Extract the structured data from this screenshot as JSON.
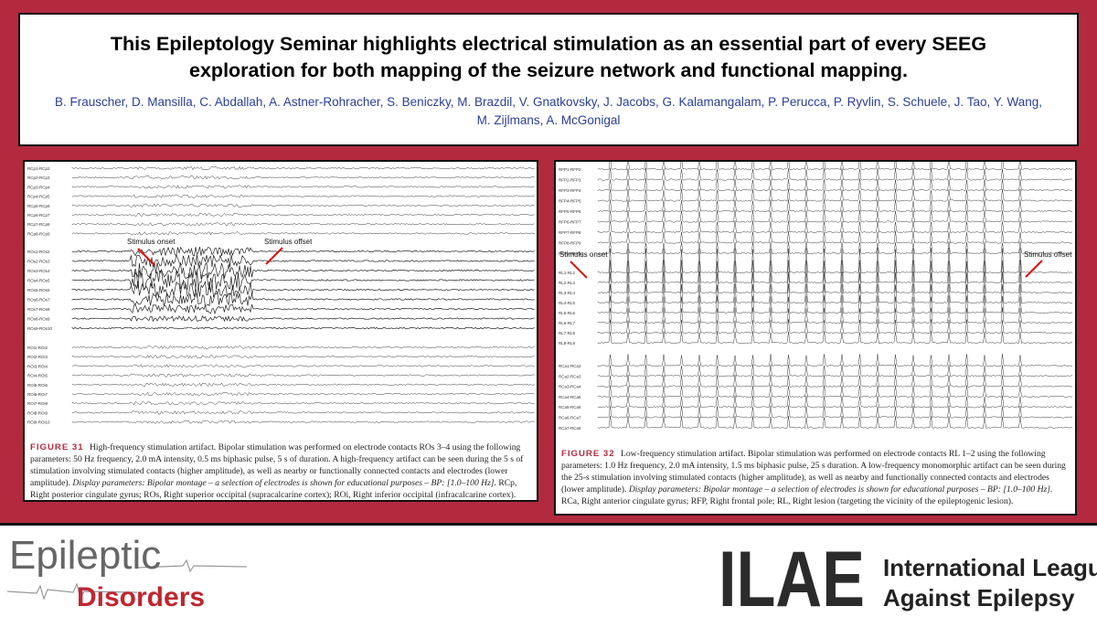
{
  "header": {
    "title": "This Epileptology Seminar highlights electrical stimulation as an essential part of every SEEG exploration for both mapping of the seizure network and functional mapping.",
    "authors": "B. Frauscher, D. Mansilla, C. Abdallah, A. Astner-Rohracher, S. Beniczky, M. Brazdil, V. Gnatkovsky, J. Jacobs, G. Kalamangalam, P. Perucca, P. Ryvlin, S. Schuele, J. Tao, Y. Wang, M. Zijlmans, A. McGonigal"
  },
  "figures": [
    {
      "channel_groups": [
        [
          "RCp1-RCp2",
          "RCp2-RCp3",
          "RCp3-RCp4",
          "RCp4-RCp5",
          "RCp5-RCp6",
          "RCp6-RCp7",
          "RCp7-RCp8",
          "RCp8-RCp9"
        ],
        [
          "ROs1-ROs2",
          "ROs2-ROs3",
          "ROs3-ROs4",
          "ROs4-ROs5",
          "ROs5-ROs6",
          "ROs6-ROs7",
          "ROs7-ROs8",
          "ROs8-ROs9",
          "ROs9-ROs10"
        ],
        [
          "ROi1-ROi2",
          "ROi2-ROi3",
          "ROi3-ROi4",
          "ROi4-ROi5",
          "ROi5-ROi6",
          "ROi6-ROi7",
          "ROi7-ROi8",
          "ROi8-ROi9",
          "ROi9-ROi10"
        ]
      ],
      "annotations": [
        "Stimulus onset",
        "Stimulus offset"
      ],
      "caption": {
        "label": "FIGURE 31",
        "text": "High-frequency stimulation artifact. Bipolar stimulation was performed on electrode contacts ROs 3–4 using the following parameters: 50 Hz frequency, 2.0 mA intensity, 0.5 ms biphasic pulse, 5 s of duration. A high-frequency artifact can be seen during the 5 s of stimulation involving stimulated contacts (higher amplitude), as well as nearby or functionally connected contacts and electrodes (lower amplitude).",
        "italic": "Display parameters: Bipolar montage – a selection of electrodes is shown for educational purposes – BP: [1.0–100 Hz].",
        "tail": "RCp, Right posterior cingulate gyrus; ROs, Right superior occipital (supracalcarine cortex); ROi, Right inferior occipital (infracalcarine cortex)."
      }
    },
    {
      "channel_groups": [
        [
          "RFP1-RFP2",
          "RFP2-RFP3",
          "RFP3-RFP4",
          "RFP4-RFP5",
          "RFP5-RFP6",
          "RFP6-RFP7",
          "RFP7-RFP8",
          "RFP8-RFP9",
          "RFP9-RFP10"
        ],
        [
          "RL1-RL2",
          "RL2-RL3",
          "RL3-RL4",
          "RL4-RL5",
          "RL5-RL6",
          "RL6-RL7",
          "RL7-RL8",
          "RL8-RL9"
        ],
        [
          "RCa1-RCa2",
          "RCa2-RCa3",
          "RCa3-RCa4",
          "RCa4-RCa5",
          "RCa5-RCa6",
          "RCa6-RCa7",
          "RCa7-RCa8"
        ]
      ],
      "annotations": [
        "Stimulus onset",
        "Stimulus offset"
      ],
      "caption": {
        "label": "FIGURE 32",
        "text": "Low-frequency stimulation artifact. Bipolar stimulation was performed on electrode contacts RL 1–2 using the following parameters: 1.0 Hz frequency, 2.0 mA intensity, 1.5 ms biphasic pulse, 25 s duration. A low-frequency monomorphic artifact can be seen during the 25-s stimulation involving stimulated contacts (higher amplitude), as well as nearby and functionally connected contacts and electrodes (lower amplitude).",
        "italic": "Display parameters: Bipolar montage – a selection of electrodes is shown for educational purposes – BP: [1.0–100 Hz].",
        "tail": "RCa, Right anterior cingulate gyrus; RFP, Right frontal pole; RL, Right lesion (targeting the vicinity of the epileptogenic lesion)."
      }
    }
  ],
  "footer": {
    "journal": [
      "Epileptic",
      "Disorders"
    ],
    "org_mark": "ILAE",
    "org_name": [
      "International League",
      "Against Epilepsy"
    ]
  }
}
